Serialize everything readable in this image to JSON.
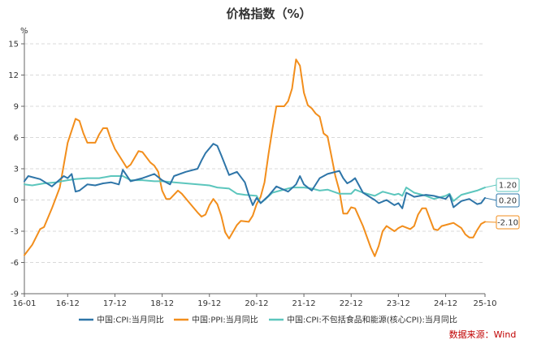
{
  "chart_data": {
    "type": "line",
    "title": "价格指数（%）",
    "yunit": "%",
    "ylim": [
      -9,
      15
    ],
    "yticks": [
      15,
      12,
      9,
      6,
      3,
      0,
      -3,
      -6,
      -9
    ],
    "x_start": "2016-01",
    "x_end": "2025-10",
    "xticks": [
      "16-01",
      "16-12",
      "17-12",
      "18-12",
      "19-12",
      "20-12",
      "21-12",
      "22-12",
      "23-12",
      "24-12",
      "25-10"
    ],
    "grid": true,
    "legend_position": "bottom",
    "source": "数据来源：Wind",
    "series": [
      {
        "name": "中国:CPI:当月同比",
        "color": "#2e75a8",
        "end_label": "0.20",
        "points": [
          [
            "2016-01",
            1.8
          ],
          [
            "2016-02",
            2.3
          ],
          [
            "2016-05",
            2.0
          ],
          [
            "2016-08",
            1.3
          ],
          [
            "2016-11",
            2.3
          ],
          [
            "2016-12",
            2.1
          ],
          [
            "2017-01",
            2.5
          ],
          [
            "2017-02",
            0.8
          ],
          [
            "2017-03",
            0.9
          ],
          [
            "2017-05",
            1.5
          ],
          [
            "2017-07",
            1.4
          ],
          [
            "2017-09",
            1.6
          ],
          [
            "2017-11",
            1.7
          ],
          [
            "2018-01",
            1.5
          ],
          [
            "2018-02",
            2.9
          ],
          [
            "2018-04",
            1.8
          ],
          [
            "2018-07",
            2.1
          ],
          [
            "2018-10",
            2.5
          ],
          [
            "2018-12",
            1.9
          ],
          [
            "2019-02",
            1.5
          ],
          [
            "2019-03",
            2.3
          ],
          [
            "2019-06",
            2.7
          ],
          [
            "2019-09",
            3.0
          ],
          [
            "2019-10",
            3.8
          ],
          [
            "2019-11",
            4.5
          ],
          [
            "2020-01",
            5.4
          ],
          [
            "2020-02",
            5.2
          ],
          [
            "2020-03",
            4.3
          ],
          [
            "2020-05",
            2.4
          ],
          [
            "2020-07",
            2.7
          ],
          [
            "2020-09",
            1.7
          ],
          [
            "2020-10",
            0.5
          ],
          [
            "2020-11",
            -0.5
          ],
          [
            "2020-12",
            0.2
          ],
          [
            "2021-01",
            -0.3
          ],
          [
            "2021-03",
            0.4
          ],
          [
            "2021-05",
            1.3
          ],
          [
            "2021-08",
            0.8
          ],
          [
            "2021-10",
            1.5
          ],
          [
            "2021-11",
            2.3
          ],
          [
            "2021-12",
            1.5
          ],
          [
            "2022-02",
            0.9
          ],
          [
            "2022-04",
            2.1
          ],
          [
            "2022-06",
            2.5
          ],
          [
            "2022-09",
            2.8
          ],
          [
            "2022-10",
            2.1
          ],
          [
            "2022-11",
            1.6
          ],
          [
            "2022-12",
            1.8
          ],
          [
            "2023-01",
            2.1
          ],
          [
            "2023-03",
            0.7
          ],
          [
            "2023-06",
            0.0
          ],
          [
            "2023-07",
            -0.3
          ],
          [
            "2023-09",
            0.0
          ],
          [
            "2023-11",
            -0.5
          ],
          [
            "2023-12",
            -0.3
          ],
          [
            "2024-01",
            -0.8
          ],
          [
            "2024-02",
            0.7
          ],
          [
            "2024-04",
            0.3
          ],
          [
            "2024-07",
            0.5
          ],
          [
            "2024-09",
            0.4
          ],
          [
            "2024-12",
            0.1
          ],
          [
            "2025-01",
            0.5
          ],
          [
            "2025-02",
            -0.7
          ],
          [
            "2025-04",
            -0.1
          ],
          [
            "2025-06",
            0.1
          ],
          [
            "2025-08",
            -0.4
          ],
          [
            "2025-09",
            -0.3
          ],
          [
            "2025-10",
            0.2
          ]
        ]
      },
      {
        "name": "中国:PPI:当月同比",
        "color": "#f28e1c",
        "end_label": "-2.10",
        "points": [
          [
            "2016-01",
            -5.3
          ],
          [
            "2016-03",
            -4.3
          ],
          [
            "2016-05",
            -2.8
          ],
          [
            "2016-06",
            -2.6
          ],
          [
            "2016-08",
            -0.8
          ],
          [
            "2016-10",
            1.2
          ],
          [
            "2016-12",
            5.5
          ],
          [
            "2017-02",
            7.8
          ],
          [
            "2017-03",
            7.6
          ],
          [
            "2017-04",
            6.4
          ],
          [
            "2017-05",
            5.5
          ],
          [
            "2017-07",
            5.5
          ],
          [
            "2017-08",
            6.3
          ],
          [
            "2017-09",
            6.9
          ],
          [
            "2017-10",
            6.9
          ],
          [
            "2017-11",
            5.8
          ],
          [
            "2017-12",
            4.9
          ],
          [
            "2018-02",
            3.7
          ],
          [
            "2018-03",
            3.1
          ],
          [
            "2018-04",
            3.4
          ],
          [
            "2018-06",
            4.7
          ],
          [
            "2018-07",
            4.6
          ],
          [
            "2018-09",
            3.6
          ],
          [
            "2018-10",
            3.3
          ],
          [
            "2018-11",
            2.7
          ],
          [
            "2018-12",
            0.9
          ],
          [
            "2019-01",
            0.1
          ],
          [
            "2019-02",
            0.1
          ],
          [
            "2019-04",
            0.9
          ],
          [
            "2019-05",
            0.6
          ],
          [
            "2019-07",
            -0.3
          ],
          [
            "2019-09",
            -1.2
          ],
          [
            "2019-10",
            -1.6
          ],
          [
            "2019-11",
            -1.4
          ],
          [
            "2019-12",
            -0.5
          ],
          [
            "2020-01",
            0.1
          ],
          [
            "2020-02",
            -0.4
          ],
          [
            "2020-03",
            -1.5
          ],
          [
            "2020-04",
            -3.1
          ],
          [
            "2020-05",
            -3.7
          ],
          [
            "2020-07",
            -2.4
          ],
          [
            "2020-08",
            -2.0
          ],
          [
            "2020-10",
            -2.1
          ],
          [
            "2020-11",
            -1.5
          ],
          [
            "2020-12",
            -0.4
          ],
          [
            "2021-01",
            0.3
          ],
          [
            "2021-02",
            1.7
          ],
          [
            "2021-03",
            4.4
          ],
          [
            "2021-04",
            6.8
          ],
          [
            "2021-05",
            9.0
          ],
          [
            "2021-07",
            9.0
          ],
          [
            "2021-08",
            9.5
          ],
          [
            "2021-09",
            10.7
          ],
          [
            "2021-10",
            13.5
          ],
          [
            "2021-11",
            12.9
          ],
          [
            "2021-12",
            10.3
          ],
          [
            "2022-01",
            9.1
          ],
          [
            "2022-02",
            8.8
          ],
          [
            "2022-03",
            8.3
          ],
          [
            "2022-04",
            8.0
          ],
          [
            "2022-05",
            6.4
          ],
          [
            "2022-06",
            6.1
          ],
          [
            "2022-07",
            4.2
          ],
          [
            "2022-08",
            2.3
          ],
          [
            "2022-09",
            0.9
          ],
          [
            "2022-10",
            -1.3
          ],
          [
            "2022-11",
            -1.3
          ],
          [
            "2022-12",
            -0.7
          ],
          [
            "2023-01",
            -0.8
          ],
          [
            "2023-03",
            -2.5
          ],
          [
            "2023-05",
            -4.6
          ],
          [
            "2023-06",
            -5.4
          ],
          [
            "2023-07",
            -4.4
          ],
          [
            "2023-08",
            -3.0
          ],
          [
            "2023-09",
            -2.5
          ],
          [
            "2023-11",
            -3.0
          ],
          [
            "2023-12",
            -2.7
          ],
          [
            "2024-01",
            -2.5
          ],
          [
            "2024-03",
            -2.8
          ],
          [
            "2024-04",
            -2.5
          ],
          [
            "2024-05",
            -1.4
          ],
          [
            "2024-06",
            -0.8
          ],
          [
            "2024-07",
            -0.8
          ],
          [
            "2024-09",
            -2.8
          ],
          [
            "2024-10",
            -2.9
          ],
          [
            "2024-11",
            -2.5
          ],
          [
            "2025-01",
            -2.3
          ],
          [
            "2025-02",
            -2.2
          ],
          [
            "2025-04",
            -2.7
          ],
          [
            "2025-05",
            -3.3
          ],
          [
            "2025-06",
            -3.6
          ],
          [
            "2025-07",
            -3.6
          ],
          [
            "2025-08",
            -2.9
          ],
          [
            "2025-09",
            -2.3
          ],
          [
            "2025-10",
            -2.1
          ]
        ]
      },
      {
        "name": "中国:CPI:不包括食品和能源(核心CPI):当月同比",
        "color": "#5cc6bd",
        "end_label": "1.20",
        "points": [
          [
            "2016-01",
            1.5
          ],
          [
            "2016-03",
            1.4
          ],
          [
            "2016-06",
            1.6
          ],
          [
            "2016-09",
            1.7
          ],
          [
            "2016-12",
            1.9
          ],
          [
            "2017-02",
            2.0
          ],
          [
            "2017-05",
            2.1
          ],
          [
            "2017-08",
            2.1
          ],
          [
            "2017-11",
            2.3
          ],
          [
            "2018-02",
            2.3
          ],
          [
            "2018-04",
            1.9
          ],
          [
            "2018-07",
            1.9
          ],
          [
            "2018-10",
            1.8
          ],
          [
            "2018-12",
            1.8
          ],
          [
            "2019-03",
            1.7
          ],
          [
            "2019-06",
            1.6
          ],
          [
            "2019-09",
            1.5
          ],
          [
            "2019-12",
            1.4
          ],
          [
            "2020-02",
            1.2
          ],
          [
            "2020-05",
            1.1
          ],
          [
            "2020-07",
            0.6
          ],
          [
            "2020-09",
            0.5
          ],
          [
            "2020-12",
            0.4
          ],
          [
            "2021-01",
            -0.3
          ],
          [
            "2021-02",
            0.0
          ],
          [
            "2021-04",
            0.7
          ],
          [
            "2021-06",
            0.9
          ],
          [
            "2021-09",
            1.2
          ],
          [
            "2021-12",
            1.2
          ],
          [
            "2022-02",
            1.1
          ],
          [
            "2022-04",
            0.9
          ],
          [
            "2022-06",
            1.0
          ],
          [
            "2022-09",
            0.6
          ],
          [
            "2022-12",
            0.6
          ],
          [
            "2023-01",
            1.0
          ],
          [
            "2023-03",
            0.7
          ],
          [
            "2023-06",
            0.4
          ],
          [
            "2023-08",
            0.8
          ],
          [
            "2023-10",
            0.6
          ],
          [
            "2023-11",
            0.5
          ],
          [
            "2023-12",
            0.6
          ],
          [
            "2024-01",
            0.4
          ],
          [
            "2024-02",
            1.2
          ],
          [
            "2024-04",
            0.7
          ],
          [
            "2024-07",
            0.4
          ],
          [
            "2024-09",
            0.1
          ],
          [
            "2024-11",
            0.3
          ],
          [
            "2024-12",
            0.4
          ],
          [
            "2025-01",
            0.6
          ],
          [
            "2025-02",
            -0.1
          ],
          [
            "2025-04",
            0.5
          ],
          [
            "2025-06",
            0.7
          ],
          [
            "2025-08",
            0.9
          ],
          [
            "2025-10",
            1.2
          ]
        ]
      }
    ]
  }
}
